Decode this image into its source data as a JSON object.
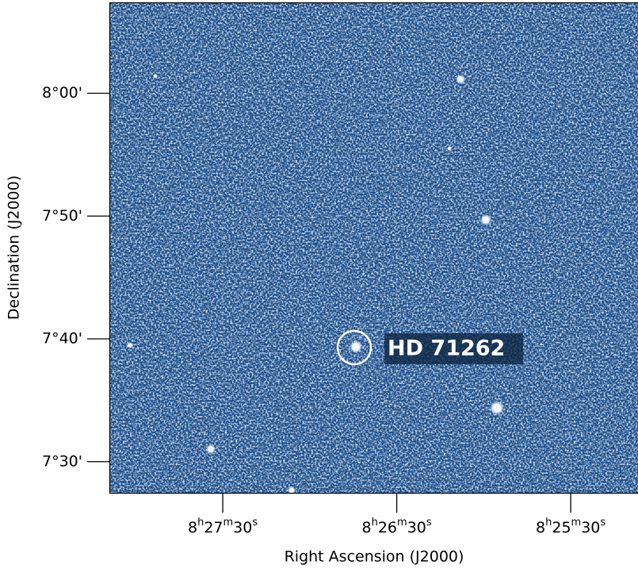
{
  "chart_data": {
    "type": "sky-image",
    "xlabel": "Right Ascension (J2000)",
    "ylabel": "Declination (J2000)",
    "xlim": [
      30489.1,
      30306.8
    ],
    "xticks": [
      {
        "value": 30450,
        "label": "8h27m30s"
      },
      {
        "value": 30390,
        "label": "8h26m30s"
      },
      {
        "value": 30330,
        "label": "8h25m30s"
      }
    ],
    "ylim": [
      447.4,
      487.4
    ],
    "yticks": [
      {
        "value": 450,
        "label": "7°30'"
      },
      {
        "value": 460,
        "label": "7°40'"
      },
      {
        "value": 470,
        "label": "7°50'"
      },
      {
        "value": 480,
        "label": "8°00'"
      }
    ],
    "grid": true,
    "annotation": "HD 71262"
  }
}
